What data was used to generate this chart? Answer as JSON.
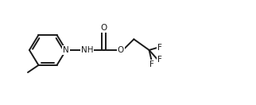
{
  "bg_color": "#ffffff",
  "line_color": "#1a1a1a",
  "lw": 1.4,
  "fs": 7.5,
  "xlim": [
    0,
    10
  ],
  "ylim": [
    0,
    4.3
  ]
}
